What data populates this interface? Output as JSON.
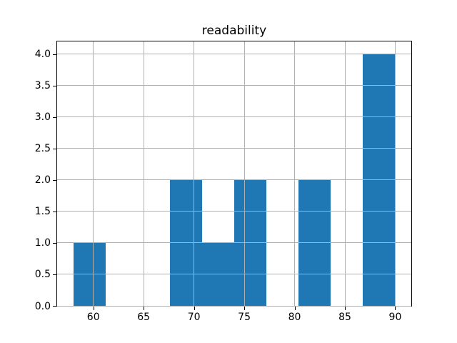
{
  "figure": {
    "background": "#ffffff"
  },
  "chart_data": {
    "type": "bar",
    "subtype": "histogram",
    "title": "readability",
    "xlabel": "",
    "ylabel": "",
    "bin_edges": [
      58.0,
      61.2,
      64.4,
      67.6,
      70.8,
      74.0,
      77.2,
      80.4,
      83.6,
      86.8,
      90.0
    ],
    "counts": [
      1,
      0,
      0,
      2,
      1,
      2,
      0,
      2,
      0,
      4
    ],
    "x_tick_values": [
      60,
      65,
      70,
      75,
      80,
      85,
      90
    ],
    "x_tick_labels": [
      "60",
      "65",
      "70",
      "75",
      "80",
      "85",
      "90"
    ],
    "y_tick_values": [
      0.0,
      0.5,
      1.0,
      1.5,
      2.0,
      2.5,
      3.0,
      3.5,
      4.0
    ],
    "y_tick_labels": [
      "0.0",
      "0.5",
      "1.0",
      "1.5",
      "2.0",
      "2.5",
      "3.0",
      "3.5",
      "4.0"
    ],
    "xlim": [
      56.4,
      91.6
    ],
    "ylim": [
      0,
      4.2
    ],
    "grid": true,
    "grid_position": "above-bars",
    "legend": "none",
    "bar_color": "#1f77b4",
    "grid_color": "#b0b0b0",
    "axis_color": "#000000",
    "text_color": "#000000"
  }
}
